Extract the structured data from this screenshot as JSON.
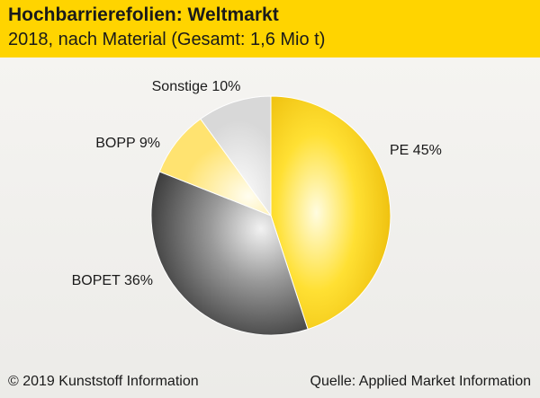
{
  "header": {
    "title": "Hochbarrierefolien: Weltmarkt",
    "subtitle": "2018, nach Material (Gesamt: 1,6 Mio t)"
  },
  "chart_data": {
    "type": "pie",
    "title": "Hochbarrierefolien: Weltmarkt",
    "subtitle": "2018, nach Material (Gesamt: 1,6 Mio t)",
    "categories": [
      "PE",
      "BOPET",
      "BOPP",
      "Sonstige"
    ],
    "values": [
      45,
      36,
      9,
      10
    ],
    "unit": "%",
    "labels": [
      "PE 45%",
      "BOPET 36%",
      "BOPP 9%",
      "Sonstige 10%"
    ],
    "colors": [
      "#f3c300",
      "#4a4a4a",
      "#ffe566",
      "#dcdcdc"
    ]
  },
  "footer": {
    "copyright": "© 2019 Kunststoff Information",
    "source": "Quelle: Applied Market Information"
  }
}
